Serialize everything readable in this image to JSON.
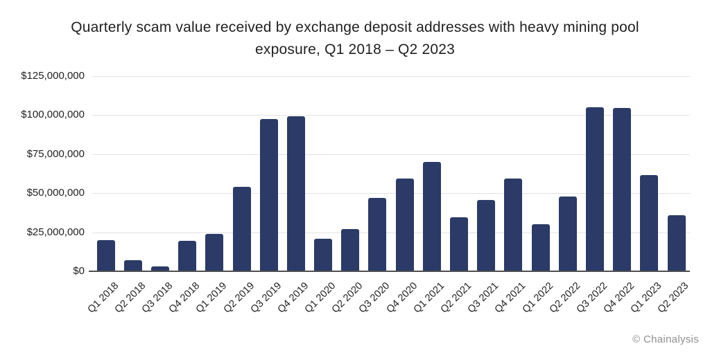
{
  "title": {
    "line1": "Quarterly scam value received by exchange deposit addresses with heavy mining pool",
    "line2": "exposure, Q1 2018 – Q2 2023"
  },
  "source": "© Chainalysis",
  "colors": {
    "bar": "#2b3a67",
    "grid": "#e2e2e2",
    "axis_line": "#4f4f51",
    "text": "#1f1f1f",
    "source_text": "#8e8e92",
    "background": "#ffffff"
  },
  "chart_data": {
    "type": "bar",
    "title": "Quarterly scam value received by exchange deposit addresses with heavy mining pool exposure, Q1 2018 – Q2 2023",
    "categories": [
      "Q1 2018",
      "Q2 2018",
      "Q3 2018",
      "Q4 2018",
      "Q1 2019",
      "Q2 2019",
      "Q3 2019",
      "Q4 2019",
      "Q1 2020",
      "Q2 2020",
      "Q3 2020",
      "Q4 2020",
      "Q1 2021",
      "Q2 2021",
      "Q3 2021",
      "Q4 2021",
      "Q1 2022",
      "Q2 2022",
      "Q3 2022",
      "Q4 2022",
      "Q1 2023",
      "Q2 2023"
    ],
    "values": [
      20000000,
      7000000,
      3000000,
      19500000,
      24000000,
      54000000,
      97500000,
      99500000,
      21000000,
      27000000,
      47000000,
      59500000,
      70000000,
      34500000,
      45500000,
      59500000,
      30000000,
      48000000,
      105000000,
      104500000,
      61500000,
      36000000
    ],
    "xlabel": "",
    "ylabel": "",
    "ylim": [
      0,
      125000000
    ],
    "y_ticks": [
      {
        "value": 0,
        "label": "$0"
      },
      {
        "value": 25000000,
        "label": "$25,000,000"
      },
      {
        "value": 50000000,
        "label": "$50,000,000"
      },
      {
        "value": 75000000,
        "label": "$75,000,000"
      },
      {
        "value": 100000000,
        "label": "$100,000,000"
      },
      {
        "value": 125000000,
        "label": "$125,000,000"
      }
    ],
    "grid": true,
    "legend": "none",
    "bar_color": "#2b3a67"
  }
}
